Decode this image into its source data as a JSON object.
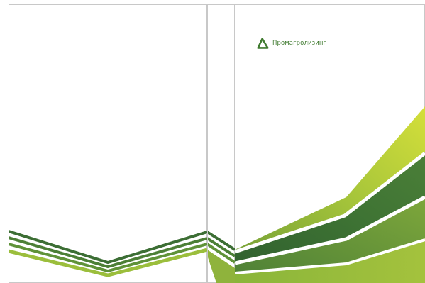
{
  "brand": {
    "name": "Промагролизинг",
    "logo_icon": "triangle-leaf-logo-icon"
  },
  "colors": {
    "background": "#ffffff",
    "panel_border": "#cccccc",
    "dark_green": "#3c6e34",
    "mid_green": "#5a8d3a",
    "light_green": "#8fb33c",
    "lime": "#c9d93a",
    "brand_text": "#3f7a2f"
  }
}
